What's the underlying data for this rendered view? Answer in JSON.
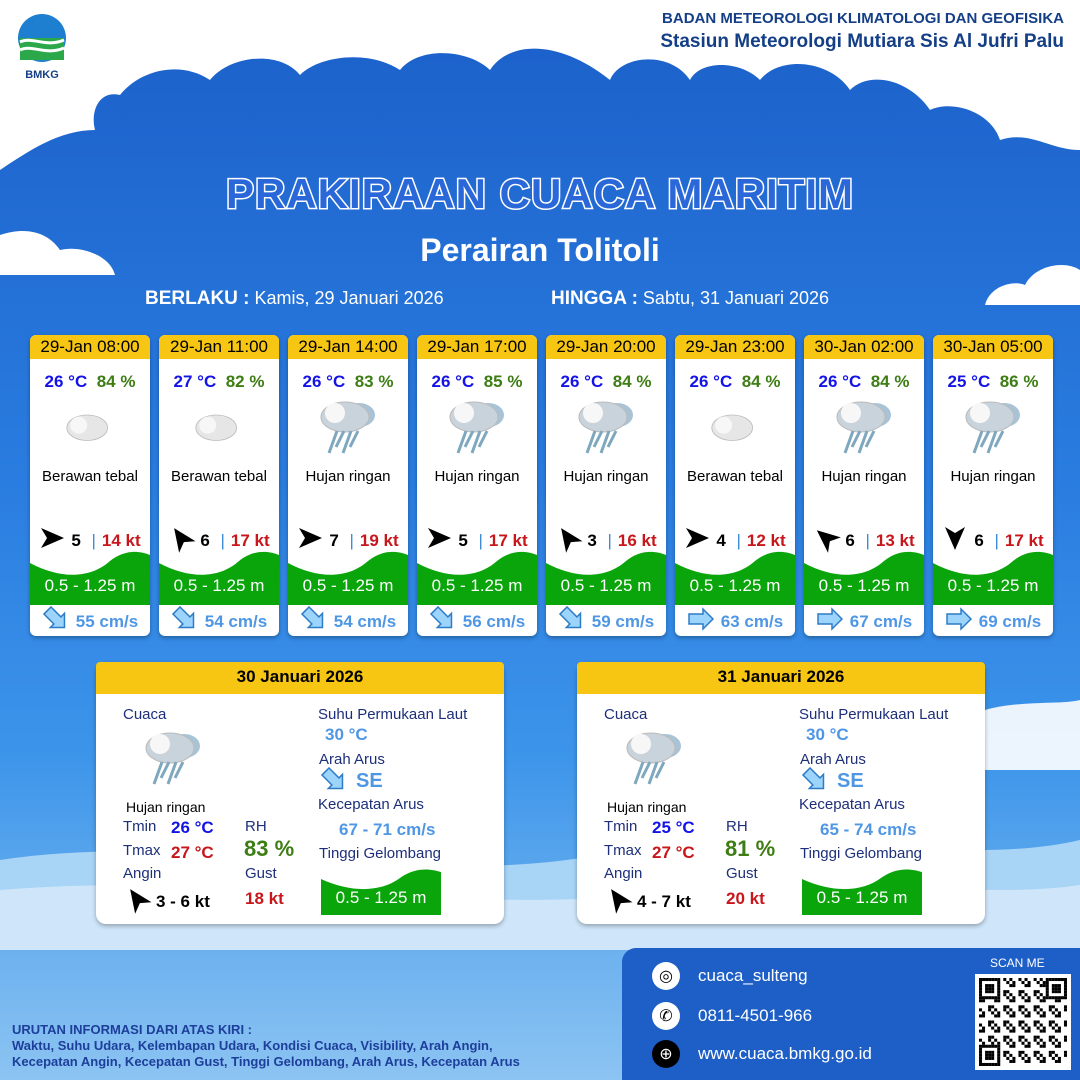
{
  "header": {
    "logo_text": "BMKG",
    "org_line1": "BADAN METEOROLOGI KLIMATOLOGI DAN GEOFISIKA",
    "org_line2": "Stasiun Meteorologi Mutiara Sis Al Jufri Palu"
  },
  "title": "PRAKIRAAN CUACA MARITIM",
  "subtitle": "Perairan Tolitoli",
  "validity": {
    "from_label": "BERLAKU :",
    "from_value": "Kamis, 29 Januari 2026",
    "to_label": "HINGGA :",
    "to_value": "Sabtu, 31 Januari 2026"
  },
  "colors": {
    "header_yellow": "#f7c613",
    "wave_green": "#0aa50a",
    "temp_blue": "#1414e6",
    "rh_green": "#3e7d14",
    "gust_red": "#c8161b",
    "current_blue": "#4f97e4"
  },
  "forecasts": [
    {
      "time": "29-Jan 08:00",
      "temp": "26 °C",
      "rh": "84 %",
      "icon": "cloudy-icon",
      "weather": "Berawan tebal",
      "wind_dir_deg": 0,
      "wind_speed": "5",
      "gust": "14 kt",
      "wave": "0.5 - 1.25 m",
      "current_dir": "SE",
      "current_speed": "55 cm/s"
    },
    {
      "time": "29-Jan 11:00",
      "temp": "27 °C",
      "rh": "82 %",
      "icon": "cloudy-icon",
      "weather": "Berawan tebal",
      "wind_dir_deg": -125,
      "wind_speed": "6",
      "gust": "17 kt",
      "wave": "0.5 - 1.25 m",
      "current_dir": "SE",
      "current_speed": "54 cm/s"
    },
    {
      "time": "29-Jan 14:00",
      "temp": "26 °C",
      "rh": "83 %",
      "icon": "light-rain-icon",
      "weather": "Hujan ringan",
      "wind_dir_deg": 0,
      "wind_speed": "7",
      "gust": "19 kt",
      "wave": "0.5 - 1.25 m",
      "current_dir": "SE",
      "current_speed": "54 cm/s"
    },
    {
      "time": "29-Jan 17:00",
      "temp": "26 °C",
      "rh": "85 %",
      "icon": "light-rain-icon",
      "weather": "Hujan ringan",
      "wind_dir_deg": 0,
      "wind_speed": "5",
      "gust": "17 kt",
      "wave": "0.5 - 1.25 m",
      "current_dir": "SE",
      "current_speed": "56 cm/s"
    },
    {
      "time": "29-Jan 20:00",
      "temp": "26 °C",
      "rh": "84 %",
      "icon": "light-rain-icon",
      "weather": "Hujan ringan",
      "wind_dir_deg": -125,
      "wind_speed": "3",
      "gust": "16 kt",
      "wave": "0.5 - 1.25 m",
      "current_dir": "SE",
      "current_speed": "59 cm/s"
    },
    {
      "time": "29-Jan 23:00",
      "temp": "26 °C",
      "rh": "84 %",
      "icon": "cloudy-icon",
      "weather": "Berawan tebal",
      "wind_dir_deg": 0,
      "wind_speed": "4",
      "gust": "12 kt",
      "wave": "0.5 - 1.25 m",
      "current_dir": "E",
      "current_speed": "63 cm/s"
    },
    {
      "time": "30-Jan 02:00",
      "temp": "26 °C",
      "rh": "84 %",
      "icon": "light-rain-icon",
      "weather": "Hujan ringan",
      "wind_dir_deg": -140,
      "wind_speed": "6",
      "gust": "13 kt",
      "wave": "0.5 - 1.25 m",
      "current_dir": "E",
      "current_speed": "67 cm/s"
    },
    {
      "time": "30-Jan 05:00",
      "temp": "25 °C",
      "rh": "86 %",
      "icon": "light-rain-icon",
      "weather": "Hujan ringan",
      "wind_dir_deg": 90,
      "wind_speed": "6",
      "gust": "17 kt",
      "wave": "0.5 - 1.25 m",
      "current_dir": "E",
      "current_speed": "69 cm/s"
    }
  ],
  "daily_labels": {
    "weather": "Cuaca",
    "tmin": "Tmin",
    "tmax": "Tmax",
    "wind": "Angin",
    "rh": "RH",
    "gust": "Gust",
    "sst": "Suhu Permukaan Laut",
    "current_dir": "Arah Arus",
    "current_speed": "Kecepatan Arus",
    "wave": "Tinggi Gelombang"
  },
  "daily": [
    {
      "date": "30 Januari 2026",
      "weather": "Hujan ringan",
      "tmin": "26 °C",
      "tmax": "27 °C",
      "wind": "3  - 6 kt",
      "rh": "83 %",
      "gust": "18 kt",
      "sst": "30 °C",
      "current_dir": "SE",
      "current_speed": "67 - 71 cm/s",
      "wave": "0.5 - 1.25 m"
    },
    {
      "date": "31 Januari 2026",
      "weather": "Hujan ringan",
      "tmin": "25 °C",
      "tmax": "27 °C",
      "wind": "4  - 7 kt",
      "rh": "81 %",
      "gust": "20 kt",
      "sst": "30 °C",
      "current_dir": "SE",
      "current_speed": "65 - 74 cm/s",
      "wave": "0.5 - 1.25 m"
    }
  ],
  "footer": {
    "order_title": "URUTAN INFORMASI DARI ATAS KIRI :",
    "order_line1": "Waktu, Suhu Udara, Kelembapan Udara, Kondisi Cuaca, Visibility, Arah Angin,",
    "order_line2": "Kecepatan Angin, Kecepatan Gust, Tinggi Gelombang, Arah Arus, Kecepatan Arus",
    "instagram": "cuaca_sulteng",
    "phone": "0811-4501-966",
    "website": "www.cuaca.bmkg.go.id",
    "scan_label": "SCAN ME"
  }
}
